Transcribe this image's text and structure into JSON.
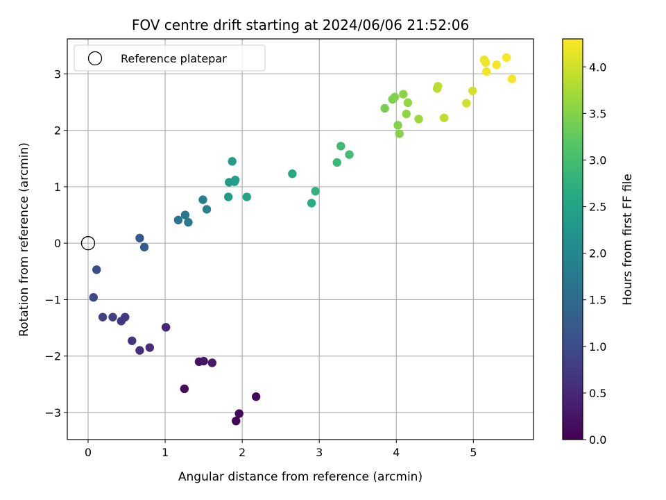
{
  "chart_data": {
    "type": "scatter",
    "title": "FOV centre drift starting at 2024/06/06 21:52:06",
    "xlabel": "Angular distance from reference (arcmin)",
    "ylabel": "Rotation from reference (arcmin)",
    "xlim": [
      -0.27,
      5.78
    ],
    "ylim": [
      -3.48,
      3.62
    ],
    "xticks": [
      0,
      1,
      2,
      3,
      4,
      5
    ],
    "xtick_labels": [
      "0",
      "1",
      "2",
      "3",
      "4",
      "5"
    ],
    "yticks": [
      -3,
      -2,
      -1,
      0,
      1,
      2,
      3
    ],
    "ytick_labels": [
      "−3",
      "−2",
      "−1",
      "0",
      "1",
      "2",
      "3"
    ],
    "grid": true,
    "colormap": "viridis",
    "legend": {
      "placement": "upper-left",
      "entries": [
        "Reference platepar"
      ]
    },
    "reference_marker": {
      "x": 0,
      "y": 0,
      "label": "Reference platepar"
    },
    "colorbar": {
      "label": "Hours from first FF file",
      "range": [
        0.0,
        4.3
      ],
      "ticks": [
        0.0,
        0.5,
        1.0,
        1.5,
        2.0,
        2.5,
        3.0,
        3.5,
        4.0
      ],
      "tick_labels": [
        "0.0",
        "0.5",
        "1.0",
        "1.5",
        "2.0",
        "2.5",
        "3.0",
        "3.5",
        "4.0"
      ]
    },
    "points": [
      {
        "x": 1.92,
        "y": -3.15,
        "t": 0.04
      },
      {
        "x": 1.96,
        "y": -3.02,
        "t": 0.07
      },
      {
        "x": 2.18,
        "y": -2.72,
        "t": 0.1
      },
      {
        "x": 1.25,
        "y": -2.58,
        "t": 0.14
      },
      {
        "x": 1.44,
        "y": -2.1,
        "t": 0.22
      },
      {
        "x": 1.5,
        "y": -2.09,
        "t": 0.26
      },
      {
        "x": 1.61,
        "y": -2.12,
        "t": 0.3
      },
      {
        "x": 1.01,
        "y": -1.49,
        "t": 0.45
      },
      {
        "x": 0.8,
        "y": -1.85,
        "t": 0.55
      },
      {
        "x": 0.67,
        "y": -1.9,
        "t": 0.6
      },
      {
        "x": 0.57,
        "y": -1.73,
        "t": 0.65
      },
      {
        "x": 0.43,
        "y": -1.38,
        "t": 0.72
      },
      {
        "x": 0.48,
        "y": -1.31,
        "t": 0.76
      },
      {
        "x": 0.32,
        "y": -1.31,
        "t": 0.8
      },
      {
        "x": 0.19,
        "y": -1.31,
        "t": 0.86
      },
      {
        "x": 0.07,
        "y": -0.96,
        "t": 0.94
      },
      {
        "x": 0.11,
        "y": -0.47,
        "t": 1.02
      },
      {
        "x": 0.67,
        "y": 0.09,
        "t": 1.2
      },
      {
        "x": 0.73,
        "y": -0.07,
        "t": 1.25
      },
      {
        "x": 1.17,
        "y": 0.41,
        "t": 1.65
      },
      {
        "x": 1.26,
        "y": 0.5,
        "t": 1.7
      },
      {
        "x": 1.3,
        "y": 0.37,
        "t": 1.72
      },
      {
        "x": 1.49,
        "y": 0.77,
        "t": 1.82
      },
      {
        "x": 1.54,
        "y": 0.6,
        "t": 1.88
      },
      {
        "x": 1.82,
        "y": 0.82,
        "t": 2.35
      },
      {
        "x": 1.83,
        "y": 1.08,
        "t": 2.35
      },
      {
        "x": 1.87,
        "y": 1.45,
        "t": 2.38
      },
      {
        "x": 1.9,
        "y": 1.09,
        "t": 2.4
      },
      {
        "x": 1.91,
        "y": 1.12,
        "t": 2.42
      },
      {
        "x": 2.06,
        "y": 0.82,
        "t": 2.5
      },
      {
        "x": 2.65,
        "y": 1.23,
        "t": 2.62
      },
      {
        "x": 2.9,
        "y": 0.71,
        "t": 2.7
      },
      {
        "x": 2.95,
        "y": 0.92,
        "t": 2.8
      },
      {
        "x": 3.23,
        "y": 1.43,
        "t": 2.9
      },
      {
        "x": 3.28,
        "y": 1.72,
        "t": 2.93
      },
      {
        "x": 3.39,
        "y": 1.57,
        "t": 2.97
      },
      {
        "x": 3.85,
        "y": 2.39,
        "t": 3.4
      },
      {
        "x": 3.95,
        "y": 2.55,
        "t": 3.45
      },
      {
        "x": 3.98,
        "y": 2.59,
        "t": 3.47
      },
      {
        "x": 4.02,
        "y": 2.09,
        "t": 3.5
      },
      {
        "x": 4.04,
        "y": 1.94,
        "t": 3.52
      },
      {
        "x": 4.09,
        "y": 2.64,
        "t": 3.55
      },
      {
        "x": 4.13,
        "y": 2.29,
        "t": 3.58
      },
      {
        "x": 4.15,
        "y": 2.49,
        "t": 3.6
      },
      {
        "x": 4.29,
        "y": 2.2,
        "t": 3.65
      },
      {
        "x": 4.53,
        "y": 2.74,
        "t": 3.85
      },
      {
        "x": 4.54,
        "y": 2.78,
        "t": 3.88
      },
      {
        "x": 4.62,
        "y": 2.22,
        "t": 3.9
      },
      {
        "x": 4.91,
        "y": 2.48,
        "t": 4.0
      },
      {
        "x": 4.99,
        "y": 2.7,
        "t": 4.02
      },
      {
        "x": 5.14,
        "y": 3.25,
        "t": 4.18
      },
      {
        "x": 5.16,
        "y": 3.2,
        "t": 4.2
      },
      {
        "x": 5.17,
        "y": 3.04,
        "t": 4.22
      },
      {
        "x": 5.3,
        "y": 3.16,
        "t": 4.24
      },
      {
        "x": 5.43,
        "y": 3.29,
        "t": 4.28
      },
      {
        "x": 5.5,
        "y": 2.91,
        "t": 4.27
      }
    ]
  }
}
